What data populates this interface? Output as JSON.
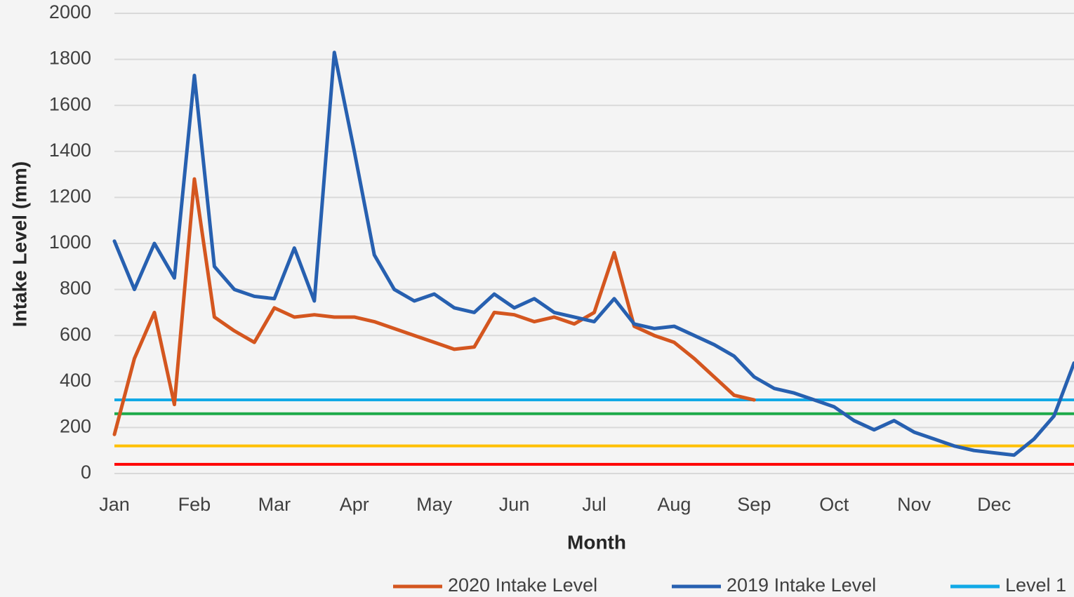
{
  "chart_data": {
    "type": "line",
    "y_label": "Intake Level (mm)",
    "x_label": "Month",
    "ylim": [
      0,
      2000
    ],
    "yticks": [
      0,
      200,
      400,
      600,
      800,
      1000,
      1200,
      1400,
      1600,
      1800,
      2000
    ],
    "grid": true,
    "legend": "bottom",
    "categories": [
      "Jan",
      null,
      null,
      null,
      "Feb",
      null,
      null,
      null,
      "Mar",
      null,
      null,
      null,
      "Apr",
      null,
      null,
      null,
      "May",
      null,
      null,
      null,
      "Jun",
      null,
      null,
      null,
      "Jul",
      null,
      null,
      null,
      "Aug",
      null,
      null,
      null,
      "Sep",
      null,
      null,
      null,
      "Oct",
      null,
      null,
      null,
      "Nov",
      null,
      null,
      null,
      "Dec",
      null,
      null,
      null,
      null
    ],
    "series": [
      {
        "name": "2020 Intake Level",
        "color": "#d4561f",
        "values": [
          170,
          500,
          700,
          300,
          1280,
          680,
          620,
          570,
          720,
          680,
          690,
          680,
          680,
          660,
          630,
          600,
          570,
          540,
          550,
          700,
          690,
          660,
          680,
          650,
          700,
          960,
          640,
          600,
          570,
          500,
          420,
          340,
          320,
          null,
          null,
          null,
          null,
          null,
          null,
          null,
          null,
          null,
          null,
          null,
          null,
          null,
          null,
          null,
          null
        ]
      },
      {
        "name": "2019 Intake Level",
        "color": "#2760b0",
        "values": [
          1010,
          800,
          1000,
          850,
          1730,
          900,
          800,
          770,
          760,
          980,
          750,
          1830,
          1400,
          950,
          800,
          750,
          780,
          720,
          700,
          780,
          720,
          760,
          700,
          680,
          660,
          760,
          650,
          630,
          640,
          600,
          560,
          510,
          420,
          370,
          350,
          320,
          290,
          230,
          190,
          230,
          180,
          150,
          120,
          100,
          90,
          80,
          150,
          250,
          480
        ]
      }
    ],
    "reference_lines": [
      {
        "name": "Level 1",
        "color": "#12a9e6",
        "value": 320
      },
      {
        "color": "#1eaa4a",
        "value": 260
      },
      {
        "color": "#ffc000",
        "value": 120
      },
      {
        "color": "#ff0000",
        "value": 40
      }
    ]
  }
}
